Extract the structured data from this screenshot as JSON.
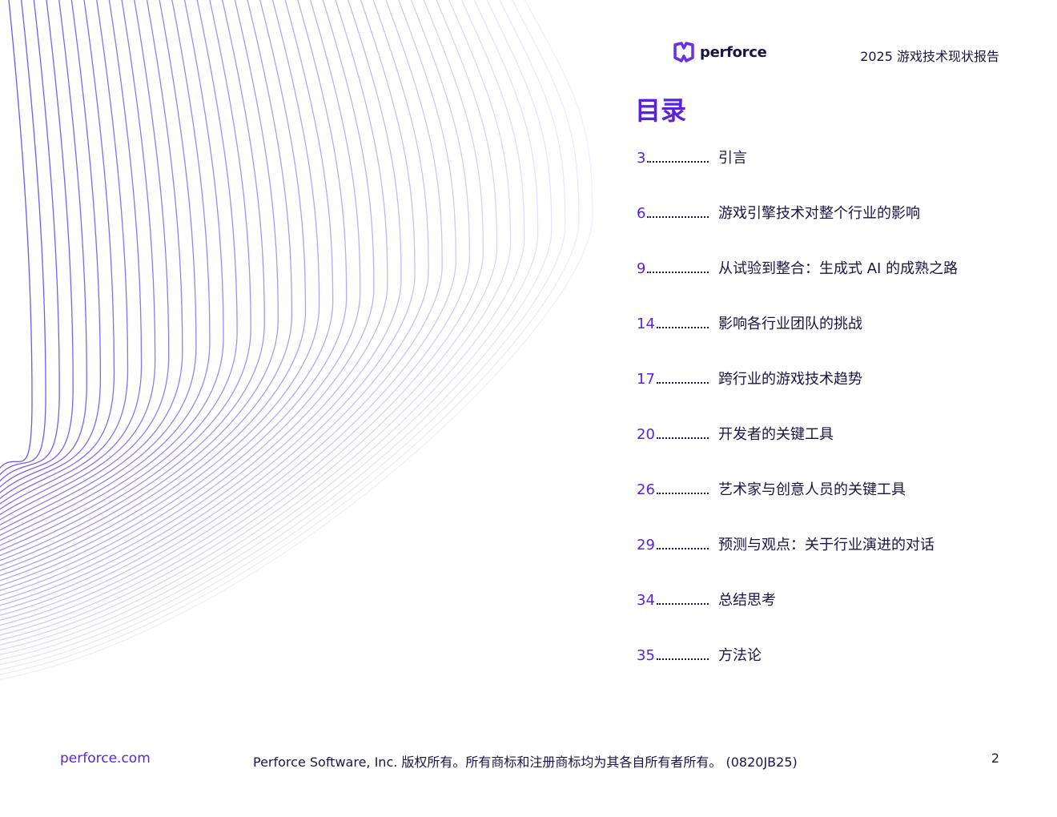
{
  "header": {
    "logo": "perforce",
    "report_title": "2025 游戏技术现状报告"
  },
  "toc": {
    "title": "目录",
    "entries": [
      {
        "page": "3",
        "title": "引言"
      },
      {
        "page": "6",
        "title": "游戏引擎技术对整个行业的影响"
      },
      {
        "page": "9",
        "title": "从试验到整合：生成式 AI 的成熟之路"
      },
      {
        "page": "14",
        "title": "影响各行业团队的挑战"
      },
      {
        "page": "17",
        "title": "跨行业的游戏技术趋势"
      },
      {
        "page": "20",
        "title": "开发者的关键工具"
      },
      {
        "page": "26",
        "title": "艺术家与创意人员的关键工具"
      },
      {
        "page": "29",
        "title": "预测与观点：关于行业演进的对话"
      },
      {
        "page": "34",
        "title": "总结思考"
      },
      {
        "page": "35",
        "title": "方法论"
      }
    ]
  },
  "footer": {
    "url": "perforce.com",
    "copyright": "Perforce Software, Inc. 版权所有。所有商标和注册商标均为其各自所有者所有。 (0820JB25)",
    "page_number": "2"
  }
}
